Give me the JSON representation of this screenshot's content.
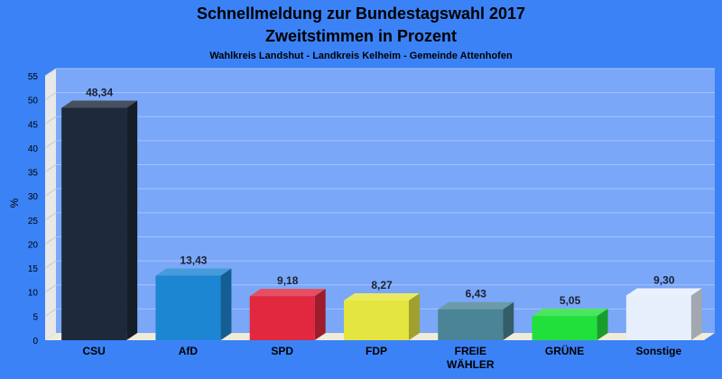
{
  "chart_data": {
    "type": "bar",
    "title_line1": "Schnellmeldung zur Bundestagswahl 2017",
    "title_line2": "Zweitstimmen in Prozent",
    "subtitle": "Wahlkreis Landshut - Landkreis Kelheim - Gemeinde Attenhofen",
    "ylabel": "%",
    "xlabel": "",
    "ylim": [
      0,
      55
    ],
    "yticks": [
      "0",
      "5",
      "10",
      "15",
      "20",
      "25",
      "30",
      "35",
      "40",
      "45",
      "50",
      "55"
    ],
    "grid": true,
    "categories": [
      {
        "label": "CSU",
        "label2": "",
        "value": 48.34,
        "display": "48,34",
        "color": "#1e293b"
      },
      {
        "label": "AfD",
        "label2": "",
        "value": 13.43,
        "display": "13,43",
        "color": "#1d86d2"
      },
      {
        "label": "SPD",
        "label2": "",
        "value": 9.18,
        "display": "9,18",
        "color": "#e1283e"
      },
      {
        "label": "FDP",
        "label2": "",
        "value": 8.27,
        "display": "8,27",
        "color": "#e5e540"
      },
      {
        "label": "FREIE",
        "label2": "WÄHLER",
        "value": 6.43,
        "display": "6,43",
        "color": "#4a8496"
      },
      {
        "label": "GRÜNE",
        "label2": "",
        "value": 5.05,
        "display": "5,05",
        "color": "#22e03c"
      },
      {
        "label": "Sonstige",
        "label2": "",
        "value": 9.3,
        "display": "9,30",
        "color": "#e8effc"
      }
    ],
    "colors": {
      "background": "#3b82f6",
      "plot_area": "#7aa7f8",
      "side_wall": "#e8e8e8",
      "floor": "#f1ecd8"
    }
  }
}
